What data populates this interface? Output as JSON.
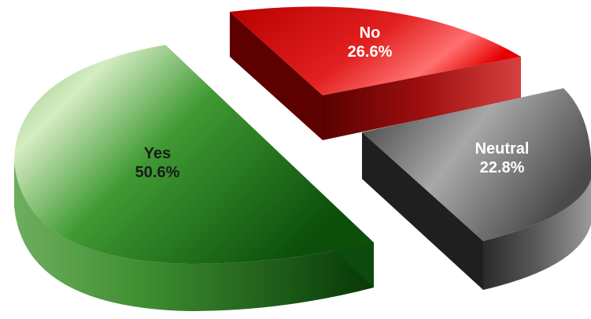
{
  "chart_data": {
    "type": "pie",
    "title": "",
    "style": "3d-exploded",
    "slices": [
      {
        "name": "Yes",
        "value": 50.6,
        "value_label": "50.6%",
        "color": "#2e8b2e"
      },
      {
        "name": "No",
        "value": 26.6,
        "value_label": "26.6%",
        "color": "#e00000"
      },
      {
        "name": "Neutral",
        "value": 22.8,
        "value_label": "22.8%",
        "color": "#6b6b6b"
      }
    ]
  }
}
